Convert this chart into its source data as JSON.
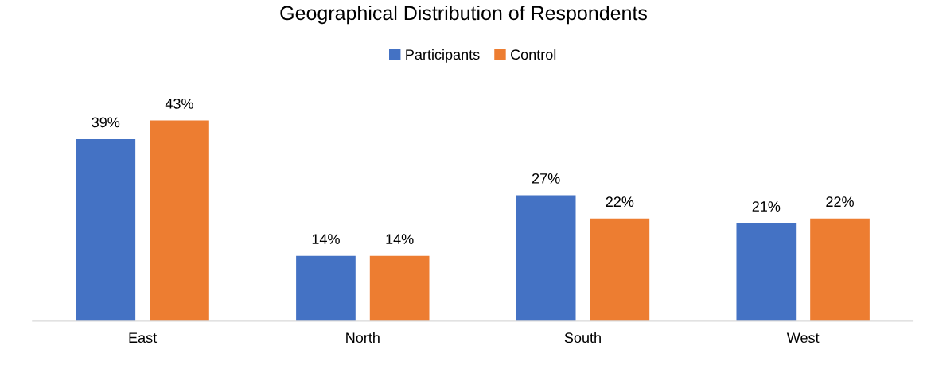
{
  "chart_data": {
    "type": "bar",
    "title": "Geographical Distribution of Respondents",
    "categories": [
      "East",
      "North",
      "South",
      "West"
    ],
    "series": [
      {
        "name": "Participants",
        "color": "#4472c4",
        "values": [
          39,
          14,
          27,
          21
        ],
        "value_labels": [
          "39%",
          "14%",
          "27%",
          "21%"
        ]
      },
      {
        "name": "Control",
        "color": "#ed7d31",
        "values": [
          43,
          14,
          22,
          22
        ],
        "value_labels": [
          "43%",
          "14%",
          "22%",
          "22%"
        ]
      }
    ],
    "legend": "top",
    "grid": false,
    "tick_labels": "x"
  }
}
